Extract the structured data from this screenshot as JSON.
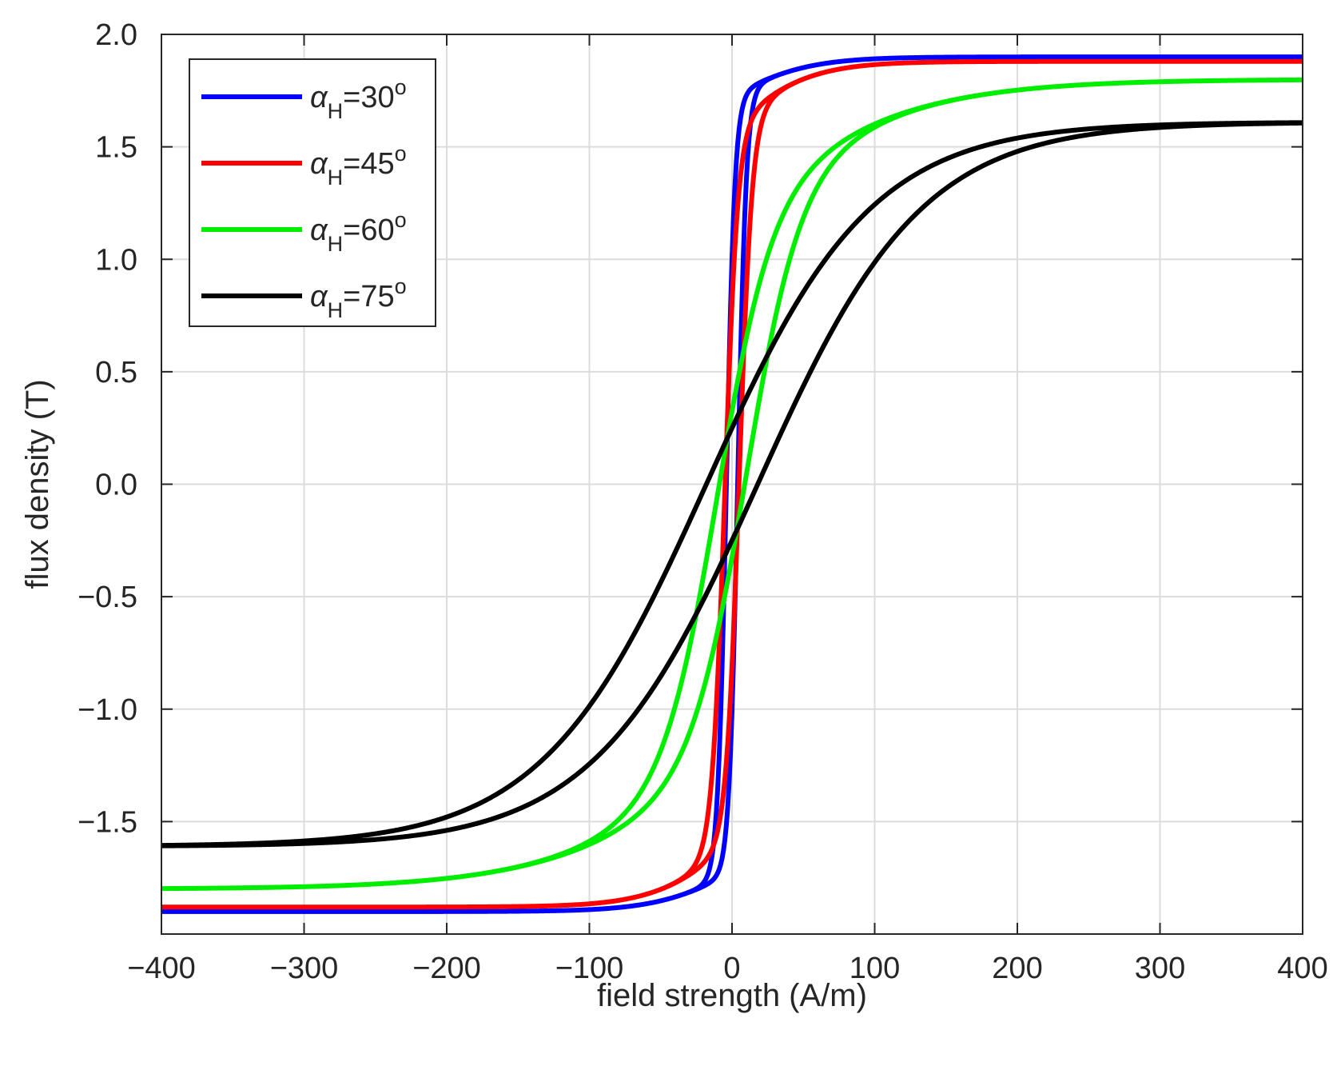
{
  "chart_data": {
    "type": "line",
    "title": "",
    "xlabel": "field strength (A/m)",
    "ylabel": "flux density (T)",
    "xlim": [
      -400,
      400
    ],
    "ylim": [
      -2.0,
      2.0
    ],
    "grid": true,
    "xticks": [
      -400,
      -300,
      -200,
      -100,
      0,
      100,
      200,
      300,
      400
    ],
    "xtick_labels": [
      "−400",
      "−300",
      "−200",
      "−100",
      "0",
      "100",
      "200",
      "300",
      "400"
    ],
    "yticks": [
      2.0,
      1.5,
      1.0,
      0.5,
      0.0,
      -0.5,
      -1.0,
      -1.5
    ],
    "ytick_labels": [
      "2.0",
      "1.5",
      "1.0",
      "0.5",
      "0.0",
      "−0.5",
      "−1.0",
      "−1.5"
    ],
    "legend_position": "top-left",
    "series": [
      {
        "name": "αH=30°",
        "legend_symbol": "α",
        "legend_subscript": "H",
        "legend_value": "=30",
        "legend_degree": "o",
        "color": "#0000ff",
        "model": {
          "saturation": 1.9,
          "coercivity": 4,
          "width": 6,
          "tail": 0.09,
          "tail_width": 55
        }
      },
      {
        "name": "αH=45°",
        "legend_symbol": "α",
        "legend_subscript": "H",
        "legend_value": "=45",
        "legend_degree": "o",
        "color": "#ff0000",
        "model": {
          "saturation": 1.88,
          "coercivity": 5,
          "width": 9,
          "tail": 0.15,
          "tail_width": 55
        }
      },
      {
        "name": "αH=60°",
        "legend_symbol": "α",
        "legend_subscript": "H",
        "legend_value": "=60",
        "legend_degree": "o",
        "color": "#00ee00",
        "model": {
          "saturation": 1.8,
          "coercivity": 10,
          "width": 38,
          "tail": 0.3,
          "tail_width": 130
        }
      },
      {
        "name": "αH=75°",
        "legend_symbol": "α",
        "legend_subscript": "H",
        "legend_value": "=75",
        "legend_degree": "o",
        "color": "#000000",
        "model": {
          "saturation": 1.61,
          "coercivity": 18,
          "width": 115,
          "tail": 0.0,
          "tail_width": 100
        }
      }
    ]
  }
}
